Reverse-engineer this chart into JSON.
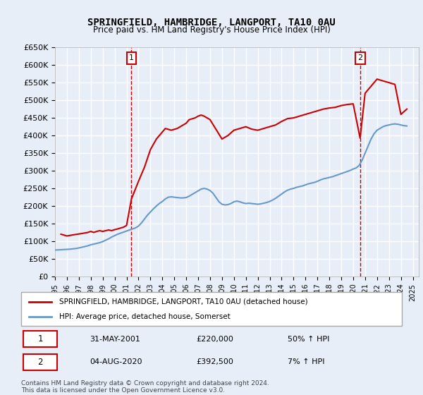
{
  "title": "SPRINGFIELD, HAMBRIDGE, LANGPORT, TA10 0AU",
  "subtitle": "Price paid vs. HM Land Registry's House Price Index (HPI)",
  "ylabel_ticks": [
    "£0",
    "£50K",
    "£100K",
    "£150K",
    "£200K",
    "£250K",
    "£300K",
    "£350K",
    "£400K",
    "£450K",
    "£500K",
    "£550K",
    "£600K",
    "£650K"
  ],
  "ylim": [
    0,
    650000
  ],
  "ytick_vals": [
    0,
    50000,
    100000,
    150000,
    200000,
    250000,
    300000,
    350000,
    400000,
    450000,
    500000,
    550000,
    600000,
    650000
  ],
  "xlim_start": 1995.0,
  "xlim_end": 2025.5,
  "background_color": "#f0f4ff",
  "plot_bg_color": "#f0f4ff",
  "grid_color": "#ffffff",
  "red_line_color": "#cc0000",
  "blue_line_color": "#6699cc",
  "marker1_x": 2001.41,
  "marker1_y": 220000,
  "marker2_x": 2020.58,
  "marker2_y": 392500,
  "marker1_label": "1",
  "marker2_label": "2",
  "legend_entries": [
    "SPRINGFIELD, HAMBRIDGE, LANGPORT, TA10 0AU (detached house)",
    "HPI: Average price, detached house, Somerset"
  ],
  "table_rows": [
    [
      "1",
      "31-MAY-2001",
      "£220,000",
      "50% ↑ HPI"
    ],
    [
      "2",
      "04-AUG-2020",
      "£392,500",
      "7% ↑ HPI"
    ]
  ],
  "footer": "Contains HM Land Registry data © Crown copyright and database right 2024.\nThis data is licensed under the Open Government Licence v3.0.",
  "hpi_data": {
    "x": [
      1995.0,
      1995.25,
      1995.5,
      1995.75,
      1996.0,
      1996.25,
      1996.5,
      1996.75,
      1997.0,
      1997.25,
      1997.5,
      1997.75,
      1998.0,
      1998.25,
      1998.5,
      1998.75,
      1999.0,
      1999.25,
      1999.5,
      1999.75,
      2000.0,
      2000.25,
      2000.5,
      2000.75,
      2001.0,
      2001.25,
      2001.5,
      2001.75,
      2002.0,
      2002.25,
      2002.5,
      2002.75,
      2003.0,
      2003.25,
      2003.5,
      2003.75,
      2004.0,
      2004.25,
      2004.5,
      2004.75,
      2005.0,
      2005.25,
      2005.5,
      2005.75,
      2006.0,
      2006.25,
      2006.5,
      2006.75,
      2007.0,
      2007.25,
      2007.5,
      2007.75,
      2008.0,
      2008.25,
      2008.5,
      2008.75,
      2009.0,
      2009.25,
      2009.5,
      2009.75,
      2010.0,
      2010.25,
      2010.5,
      2010.75,
      2011.0,
      2011.25,
      2011.5,
      2011.75,
      2012.0,
      2012.25,
      2012.5,
      2012.75,
      2013.0,
      2013.25,
      2013.5,
      2013.75,
      2014.0,
      2014.25,
      2014.5,
      2014.75,
      2015.0,
      2015.25,
      2015.5,
      2015.75,
      2016.0,
      2016.25,
      2016.5,
      2016.75,
      2017.0,
      2017.25,
      2017.5,
      2017.75,
      2018.0,
      2018.25,
      2018.5,
      2018.75,
      2019.0,
      2019.25,
      2019.5,
      2019.75,
      2020.0,
      2020.25,
      2020.5,
      2020.75,
      2021.0,
      2021.25,
      2021.5,
      2021.75,
      2022.0,
      2022.25,
      2022.5,
      2022.75,
      2023.0,
      2023.25,
      2023.5,
      2023.75,
      2024.0,
      2024.25,
      2024.5
    ],
    "y": [
      75000,
      75500,
      76000,
      76500,
      77000,
      77500,
      78500,
      79500,
      81000,
      83000,
      85000,
      87000,
      90000,
      92000,
      94000,
      96000,
      99000,
      103000,
      107000,
      112000,
      116000,
      120000,
      123000,
      126000,
      129000,
      132000,
      135000,
      138000,
      143000,
      152000,
      163000,
      174000,
      183000,
      192000,
      200000,
      207000,
      213000,
      220000,
      225000,
      226000,
      225000,
      224000,
      223000,
      223000,
      224000,
      228000,
      233000,
      238000,
      243000,
      248000,
      250000,
      248000,
      244000,
      236000,
      224000,
      212000,
      205000,
      203000,
      204000,
      207000,
      212000,
      214000,
      212000,
      209000,
      207000,
      208000,
      207000,
      206000,
      205000,
      206000,
      208000,
      210000,
      213000,
      217000,
      222000,
      228000,
      234000,
      240000,
      245000,
      248000,
      250000,
      253000,
      255000,
      257000,
      260000,
      263000,
      265000,
      267000,
      270000,
      274000,
      277000,
      279000,
      281000,
      283000,
      286000,
      289000,
      292000,
      295000,
      298000,
      301000,
      305000,
      308000,
      315000,
      330000,
      350000,
      370000,
      390000,
      405000,
      415000,
      420000,
      425000,
      428000,
      430000,
      432000,
      433000,
      432000,
      430000,
      428000,
      427000
    ]
  },
  "price_data": {
    "x": [
      1995.5,
      1996.0,
      1996.5,
      1997.25,
      1997.75,
      1998.0,
      1998.25,
      1998.5,
      1998.75,
      1999.0,
      1999.25,
      1999.5,
      1999.75,
      2000.0,
      2000.25,
      2000.75,
      2001.0,
      2001.41,
      2002.0,
      2002.5,
      2003.0,
      2003.5,
      2004.0,
      2004.25,
      2004.75,
      2005.25,
      2005.75,
      2006.0,
      2006.25,
      2006.75,
      2007.0,
      2007.25,
      2007.5,
      2007.75,
      2008.0,
      2009.0,
      2009.5,
      2010.0,
      2010.5,
      2011.0,
      2011.5,
      2012.0,
      2012.5,
      2013.0,
      2013.5,
      2014.0,
      2014.5,
      2015.0,
      2015.5,
      2016.0,
      2016.5,
      2017.0,
      2017.5,
      2018.0,
      2018.5,
      2019.0,
      2019.5,
      2020.0,
      2020.58,
      2021.0,
      2021.5,
      2022.0,
      2022.5,
      2023.0,
      2023.5,
      2024.0,
      2024.5
    ],
    "y": [
      120000,
      115000,
      118000,
      122000,
      125000,
      128000,
      125000,
      128000,
      130000,
      128000,
      130000,
      132000,
      130000,
      133000,
      135000,
      140000,
      145000,
      220000,
      270000,
      310000,
      360000,
      390000,
      410000,
      420000,
      415000,
      420000,
      430000,
      435000,
      445000,
      450000,
      455000,
      458000,
      455000,
      450000,
      445000,
      390000,
      400000,
      415000,
      420000,
      425000,
      418000,
      415000,
      420000,
      425000,
      430000,
      440000,
      448000,
      450000,
      455000,
      460000,
      465000,
      470000,
      475000,
      478000,
      480000,
      485000,
      488000,
      490000,
      392500,
      520000,
      540000,
      560000,
      555000,
      550000,
      545000,
      460000,
      475000
    ]
  }
}
